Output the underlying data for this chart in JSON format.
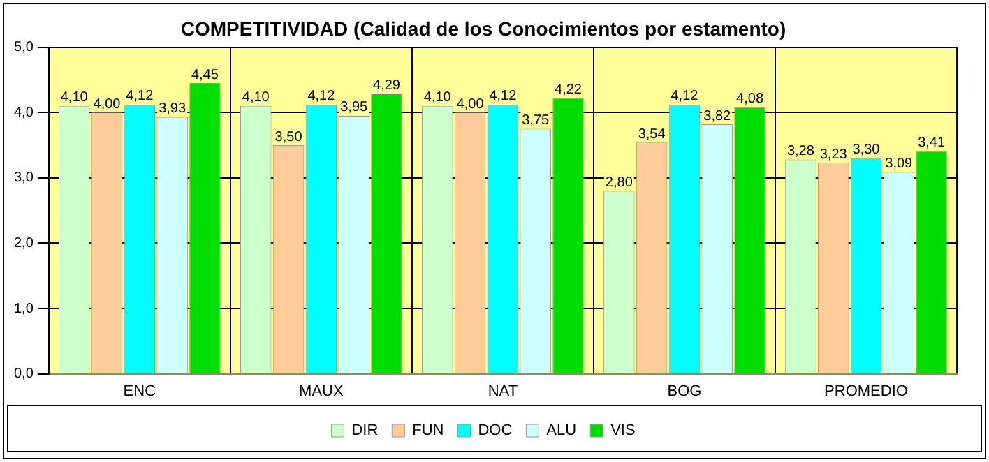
{
  "chart_data": {
    "type": "bar",
    "title": "COMPETITIVIDAD (Calidad de los Conocimientos por estamento)",
    "categories": [
      "ENC",
      "MAUX",
      "NAT",
      "BOG",
      "PROMEDIO"
    ],
    "series": [
      {
        "name": "DIR",
        "color": "#ccffcc",
        "values": [
          4.1,
          4.1,
          4.1,
          2.8,
          3.28
        ],
        "value_labels": [
          "4,10",
          "4,10",
          "4,10",
          "2,80",
          "3,28"
        ]
      },
      {
        "name": "FUN",
        "color": "#ffcc99",
        "values": [
          4.0,
          3.5,
          4.0,
          3.54,
          3.23
        ],
        "value_labels": [
          "4,00",
          "3,50",
          "4,00",
          "3,54",
          "3,23"
        ]
      },
      {
        "name": "DOC",
        "color": "#00ffff",
        "values": [
          4.12,
          4.12,
          4.12,
          4.12,
          3.3
        ],
        "value_labels": [
          "4,12",
          "4,12",
          "4,12",
          "4,12",
          "3,30"
        ]
      },
      {
        "name": "ALU",
        "color": "#ccffff",
        "values": [
          3.93,
          3.95,
          3.75,
          3.82,
          3.09
        ],
        "value_labels": [
          "3,93",
          "3,95",
          "3,75",
          "3,82",
          "3,09"
        ]
      },
      {
        "name": "VIS",
        "color": "#00dd00",
        "values": [
          4.45,
          4.29,
          4.22,
          4.08,
          3.41
        ],
        "value_labels": [
          "4,45",
          "4,29",
          "4,22",
          "4,08",
          "3,41"
        ]
      }
    ],
    "ylim": [
      0,
      5
    ],
    "yticks": [
      {
        "value": 0,
        "label": "0,0"
      },
      {
        "value": 1,
        "label": "1,0"
      },
      {
        "value": 2,
        "label": "2,0"
      },
      {
        "value": 3,
        "label": "3,0"
      },
      {
        "value": 4,
        "label": "4,0"
      },
      {
        "value": 5,
        "label": "5,0"
      }
    ],
    "grid": true,
    "legend": "bottom"
  }
}
